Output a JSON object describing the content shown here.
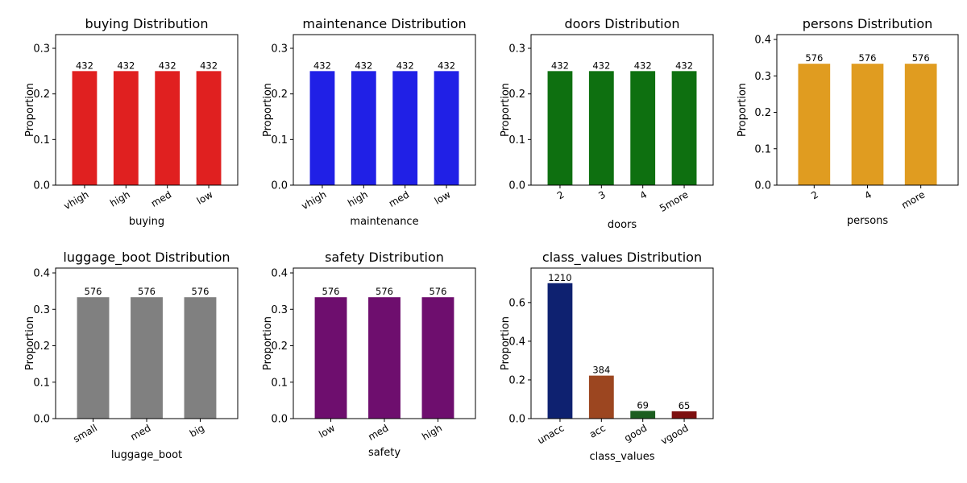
{
  "chart_data": [
    {
      "type": "bar",
      "title": "buying Distribution",
      "xlabel": "buying",
      "ylabel": "Proportion",
      "categories": [
        "vhigh",
        "high",
        "med",
        "low"
      ],
      "values": [
        0.25,
        0.25,
        0.25,
        0.25
      ],
      "bar_labels": [
        "432",
        "432",
        "432",
        "432"
      ],
      "ylim": [
        0,
        0.33
      ],
      "yticks": [
        0.0,
        0.1,
        0.2,
        0.3
      ],
      "ytick_labels": [
        "0.0",
        "0.1",
        "0.2",
        "0.3"
      ],
      "colors": [
        "#e02020",
        "#e02020",
        "#e02020",
        "#e02020"
      ],
      "grid": false
    },
    {
      "type": "bar",
      "title": "maintenance Distribution",
      "xlabel": "maintenance",
      "ylabel": "Proportion",
      "categories": [
        "vhigh",
        "high",
        "med",
        "low"
      ],
      "values": [
        0.25,
        0.25,
        0.25,
        0.25
      ],
      "bar_labels": [
        "432",
        "432",
        "432",
        "432"
      ],
      "ylim": [
        0,
        0.33
      ],
      "yticks": [
        0.0,
        0.1,
        0.2,
        0.3
      ],
      "ytick_labels": [
        "0.0",
        "0.1",
        "0.2",
        "0.3"
      ],
      "colors": [
        "#2020e6",
        "#2020e6",
        "#2020e6",
        "#2020e6"
      ],
      "grid": false
    },
    {
      "type": "bar",
      "title": "doors Distribution",
      "xlabel": "doors",
      "ylabel": "Proportion",
      "categories": [
        "2",
        "3",
        "4",
        "5more"
      ],
      "values": [
        0.25,
        0.25,
        0.25,
        0.25
      ],
      "bar_labels": [
        "432",
        "432",
        "432",
        "432"
      ],
      "ylim": [
        0,
        0.33
      ],
      "yticks": [
        0.0,
        0.1,
        0.2,
        0.3
      ],
      "ytick_labels": [
        "0.0",
        "0.1",
        "0.2",
        "0.3"
      ],
      "colors": [
        "#0e7010",
        "#0e7010",
        "#0e7010",
        "#0e7010"
      ],
      "grid": false
    },
    {
      "type": "bar",
      "title": "persons Distribution",
      "xlabel": "persons",
      "ylabel": "Proportion",
      "categories": [
        "2",
        "4",
        "more"
      ],
      "values": [
        0.3333,
        0.3333,
        0.3333
      ],
      "bar_labels": [
        "576",
        "576",
        "576"
      ],
      "ylim": [
        0,
        0.4133
      ],
      "yticks": [
        0.0,
        0.1,
        0.2,
        0.3,
        0.4
      ],
      "ytick_labels": [
        "0.0",
        "0.1",
        "0.2",
        "0.3",
        "0.4"
      ],
      "colors": [
        "#e09c20",
        "#e09c20",
        "#e09c20"
      ],
      "grid": false
    },
    {
      "type": "bar",
      "title": "luggage_boot Distribution",
      "xlabel": "luggage_boot",
      "ylabel": "Proportion",
      "categories": [
        "small",
        "med",
        "big"
      ],
      "values": [
        0.3333,
        0.3333,
        0.3333
      ],
      "bar_labels": [
        "576",
        "576",
        "576"
      ],
      "ylim": [
        0,
        0.4133
      ],
      "yticks": [
        0.0,
        0.1,
        0.2,
        0.3,
        0.4
      ],
      "ytick_labels": [
        "0.0",
        "0.1",
        "0.2",
        "0.3",
        "0.4"
      ],
      "colors": [
        "#808080",
        "#808080",
        "#808080"
      ],
      "grid": false
    },
    {
      "type": "bar",
      "title": "safety Distribution",
      "xlabel": "safety",
      "ylabel": "Proportion",
      "categories": [
        "low",
        "med",
        "high"
      ],
      "values": [
        0.3333,
        0.3333,
        0.3333
      ],
      "bar_labels": [
        "576",
        "576",
        "576"
      ],
      "ylim": [
        0,
        0.4133
      ],
      "yticks": [
        0.0,
        0.1,
        0.2,
        0.3,
        0.4
      ],
      "ytick_labels": [
        "0.0",
        "0.1",
        "0.2",
        "0.3",
        "0.4"
      ],
      "colors": [
        "#6e0e6e",
        "#6e0e6e",
        "#6e0e6e"
      ],
      "grid": false
    },
    {
      "type": "bar",
      "title": "class_values Distribution",
      "xlabel": "class_values",
      "ylabel": "Proportion",
      "categories": [
        "unacc",
        "acc",
        "good",
        "vgood"
      ],
      "values": [
        0.7002,
        0.2222,
        0.0399,
        0.0376
      ],
      "bar_labels": [
        "1210",
        "384",
        "69",
        "65"
      ],
      "ylim": [
        0,
        0.7783
      ],
      "yticks": [
        0.0,
        0.2,
        0.4,
        0.6
      ],
      "ytick_labels": [
        "0.0",
        "0.2",
        "0.4",
        "0.6"
      ],
      "colors": [
        "#0e2170",
        "#9c4620",
        "#1c5e20",
        "#7e1010"
      ],
      "grid": false
    }
  ]
}
